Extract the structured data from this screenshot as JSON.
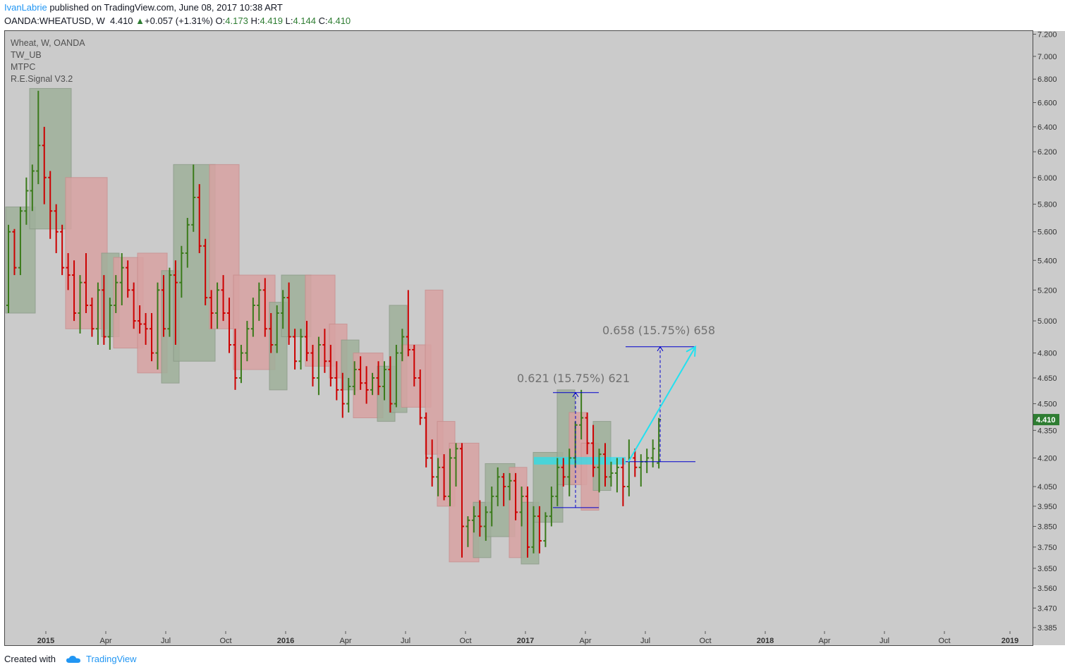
{
  "header": {
    "author": "IvanLabrie",
    "published": " published on TradingView.com, June 08, 2017 10:38 ART",
    "symbol": "OANDA:WHEATUSD, W",
    "last": "4.410",
    "change": "+0.057 (+1.31%)",
    "o_label": "O:",
    "o_val": "4.173",
    "h_label": "H:",
    "h_val": "4.419",
    "l_label": "L:",
    "l_val": "4.144",
    "c_label": "C:",
    "c_val": "4.410"
  },
  "legend": [
    "Wheat, W, OANDA",
    "TW_UB",
    "MTPC",
    "R.E.Signal V3.2"
  ],
  "footer": {
    "created": "Created with",
    "brand": "TradingView"
  },
  "colors": {
    "background": "#cbcbcb",
    "up": "#3a7a1a",
    "down": "#cc0000",
    "neutral": "#111111",
    "box_up": "#9fb09a",
    "box_down": "#d8a3a3",
    "measure": "#0000cc",
    "arrow": "#22e1f0",
    "price_tag": "#2e7d32"
  },
  "chart_data": {
    "type": "candlestick",
    "title": "Wheat, W, OANDA",
    "y_ticks": [
      "7.200",
      "7.000",
      "6.800",
      "6.600",
      "6.400",
      "6.200",
      "6.000",
      "5.800",
      "5.600",
      "5.400",
      "5.200",
      "5.000",
      "4.800",
      "4.650",
      "4.500",
      "4.350",
      "4.200",
      "4.050",
      "3.950",
      "3.850",
      "3.750",
      "3.650",
      "3.560",
      "3.470",
      "3.385"
    ],
    "x_ticks": [
      "2015",
      "Apr",
      "Jul",
      "Oct",
      "2016",
      "Apr",
      "Jul",
      "Oct",
      "2017",
      "Apr",
      "Jul",
      "Oct",
      "2018",
      "Apr",
      "Jul",
      "Oct",
      "2019"
    ],
    "x_bold": [
      "2015",
      "2016",
      "2017",
      "2018",
      "2019"
    ],
    "last_price": "4.410",
    "bars": [
      [
        5.1,
        5.65,
        5.05,
        5.6
      ],
      [
        5.6,
        5.62,
        5.3,
        5.35
      ],
      [
        5.35,
        5.78,
        5.3,
        5.75
      ],
      [
        5.75,
        6.0,
        5.65,
        5.9
      ],
      [
        5.9,
        6.1,
        5.75,
        6.05
      ],
      [
        6.05,
        6.7,
        5.95,
        6.25
      ],
      [
        6.25,
        6.4,
        5.8,
        6.0
      ],
      [
        6.0,
        6.05,
        5.55,
        5.75
      ],
      [
        5.75,
        5.8,
        5.45,
        5.6
      ],
      [
        5.6,
        5.65,
        5.3,
        5.35
      ],
      [
        5.35,
        5.45,
        5.2,
        5.3
      ],
      [
        5.3,
        5.4,
        5.0,
        5.05
      ],
      [
        5.05,
        5.3,
        4.92,
        5.25
      ],
      [
        5.25,
        5.45,
        5.05,
        5.1
      ],
      [
        5.1,
        5.15,
        4.9,
        4.95
      ],
      [
        4.95,
        5.25,
        4.85,
        5.2
      ],
      [
        5.2,
        5.3,
        4.85,
        4.9
      ],
      [
        4.9,
        5.15,
        4.82,
        5.1
      ],
      [
        5.1,
        5.3,
        5.05,
        5.25
      ],
      [
        5.25,
        5.45,
        5.1,
        5.35
      ],
      [
        5.35,
        5.4,
        5.15,
        5.2
      ],
      [
        5.2,
        5.25,
        4.95,
        5.0
      ],
      [
        5.0,
        5.1,
        4.92,
        4.98
      ],
      [
        4.98,
        5.05,
        4.85,
        4.95
      ],
      [
        4.95,
        5.05,
        4.75,
        4.8
      ],
      [
        4.8,
        5.25,
        4.7,
        5.2
      ],
      [
        5.2,
        5.3,
        4.9,
        4.95
      ],
      [
        4.95,
        5.35,
        4.9,
        5.3
      ],
      [
        5.3,
        5.4,
        4.85,
        5.25
      ],
      [
        5.25,
        5.5,
        5.15,
        5.45
      ],
      [
        5.45,
        5.7,
        5.35,
        5.65
      ],
      [
        5.65,
        6.1,
        5.6,
        5.85
      ],
      [
        5.85,
        5.95,
        5.45,
        5.5
      ],
      [
        5.5,
        5.55,
        5.1,
        5.15
      ],
      [
        5.15,
        5.2,
        4.95,
        5.05
      ],
      [
        5.05,
        5.25,
        4.95,
        5.2
      ],
      [
        5.2,
        5.3,
        5.0,
        5.05
      ],
      [
        5.05,
        5.15,
        4.8,
        4.85
      ],
      [
        4.85,
        4.95,
        4.58,
        4.65
      ],
      [
        4.65,
        4.85,
        4.62,
        4.8
      ],
      [
        4.8,
        5.0,
        4.75,
        4.95
      ],
      [
        4.95,
        5.15,
        4.9,
        5.1
      ],
      [
        5.1,
        5.25,
        5.0,
        5.2
      ],
      [
        5.2,
        5.28,
        4.9,
        4.95
      ],
      [
        4.95,
        5.05,
        4.8,
        4.85
      ],
      [
        4.85,
        5.1,
        4.8,
        5.05
      ],
      [
        5.05,
        5.2,
        4.95,
        5.15
      ],
      [
        5.15,
        5.25,
        4.85,
        4.9
      ],
      [
        4.9,
        4.95,
        4.7,
        4.75
      ],
      [
        4.75,
        4.95,
        4.7,
        4.9
      ],
      [
        4.9,
        5.0,
        4.75,
        4.8
      ],
      [
        4.8,
        4.85,
        4.6,
        4.65
      ],
      [
        4.65,
        4.9,
        4.55,
        4.85
      ],
      [
        4.85,
        4.95,
        4.68,
        4.75
      ],
      [
        4.75,
        4.85,
        4.6,
        4.65
      ],
      [
        4.65,
        4.75,
        4.52,
        4.58
      ],
      [
        4.58,
        4.68,
        4.42,
        4.5
      ],
      [
        4.5,
        4.65,
        4.45,
        4.6
      ],
      [
        4.6,
        4.75,
        4.55,
        4.7
      ],
      [
        4.7,
        4.78,
        4.58,
        4.62
      ],
      [
        4.62,
        4.72,
        4.5,
        4.58
      ],
      [
        4.58,
        4.68,
        4.55,
        4.65
      ],
      [
        4.65,
        4.75,
        4.55,
        4.6
      ],
      [
        4.6,
        4.75,
        4.52,
        4.7
      ],
      [
        4.7,
        4.78,
        4.45,
        4.5
      ],
      [
        4.5,
        4.85,
        4.48,
        4.8
      ],
      [
        4.8,
        4.95,
        4.75,
        4.9
      ],
      [
        4.9,
        5.2,
        4.78,
        4.82
      ],
      [
        4.82,
        4.85,
        4.6,
        4.65
      ],
      [
        4.65,
        4.7,
        4.38,
        4.42
      ],
      [
        4.42,
        4.45,
        4.15,
        4.2
      ],
      [
        4.2,
        4.3,
        4.05,
        4.1
      ],
      [
        4.1,
        4.2,
        4.0,
        4.15
      ],
      [
        4.15,
        4.22,
        3.98,
        4.0
      ],
      [
        4.0,
        4.25,
        3.95,
        4.2
      ],
      [
        4.2,
        4.28,
        4.05,
        4.25
      ],
      [
        4.25,
        4.28,
        3.7,
        3.85
      ],
      [
        3.85,
        3.9,
        3.75,
        3.88
      ],
      [
        3.88,
        3.95,
        3.82,
        3.9
      ],
      [
        3.9,
        3.98,
        3.8,
        3.85
      ],
      [
        3.85,
        3.95,
        3.78,
        3.92
      ],
      [
        3.92,
        4.05,
        3.85,
        4.0
      ],
      [
        4.0,
        4.15,
        3.95,
        4.1
      ],
      [
        4.1,
        4.12,
        3.95,
        4.05
      ],
      [
        4.05,
        4.12,
        3.98,
        4.08
      ],
      [
        4.08,
        4.12,
        3.88,
        3.92
      ],
      [
        3.92,
        4.05,
        3.85,
        4.0
      ],
      [
        4.0,
        4.05,
        3.7,
        3.75
      ],
      [
        3.75,
        3.95,
        3.72,
        3.9
      ],
      [
        3.9,
        3.95,
        3.72,
        3.78
      ],
      [
        3.78,
        3.92,
        3.75,
        3.9
      ],
      [
        3.9,
        4.05,
        3.85,
        4.0
      ],
      [
        4.0,
        4.2,
        3.95,
        4.15
      ],
      [
        4.15,
        4.2,
        4.05,
        4.1
      ],
      [
        4.1,
        4.25,
        4.0,
        4.2
      ],
      [
        4.2,
        4.4,
        4.15,
        4.38
      ],
      [
        4.38,
        4.58,
        4.3,
        4.42
      ],
      [
        4.42,
        4.45,
        4.22,
        4.28
      ],
      [
        4.28,
        4.38,
        4.1,
        4.15
      ],
      [
        4.15,
        4.25,
        4.02,
        4.22
      ],
      [
        4.22,
        4.28,
        4.05,
        4.1
      ],
      [
        4.1,
        4.18,
        4.05,
        4.12
      ],
      [
        4.12,
        4.2,
        4.02,
        4.15
      ],
      [
        4.15,
        4.2,
        3.95,
        4.05
      ],
      [
        4.05,
        4.3,
        4.0,
        4.2
      ],
      [
        4.2,
        4.25,
        4.1,
        4.15
      ],
      [
        4.15,
        4.22,
        4.05,
        4.18
      ],
      [
        4.18,
        4.25,
        4.12,
        4.2
      ],
      [
        4.2,
        4.3,
        4.15,
        4.25
      ],
      [
        4.173,
        4.419,
        4.144,
        4.41
      ]
    ],
    "blocks": [
      {
        "dir": "up",
        "i0": 0,
        "i1": 1,
        "lo": 5.05,
        "hi": 5.78
      },
      {
        "dir": "up",
        "i0": 2,
        "i1": 4,
        "lo": 5.62,
        "hi": 6.72
      },
      {
        "dir": "down",
        "i0": 5,
        "i1": 7,
        "lo": 4.95,
        "hi": 6.0
      },
      {
        "dir": "up",
        "i0": 8,
        "i1": 8,
        "lo": 4.9,
        "hi": 5.45
      },
      {
        "dir": "down",
        "i0": 9,
        "i1": 10,
        "lo": 4.83,
        "hi": 5.42
      },
      {
        "dir": "down",
        "i0": 11,
        "i1": 12,
        "lo": 4.68,
        "hi": 5.45
      },
      {
        "dir": "up",
        "i0": 13,
        "i1": 13,
        "lo": 4.62,
        "hi": 5.33
      },
      {
        "dir": "up",
        "i0": 14,
        "i1": 16,
        "lo": 4.75,
        "hi": 6.1
      },
      {
        "dir": "down",
        "i0": 17,
        "i1": 18,
        "lo": 4.95,
        "hi": 6.1
      },
      {
        "dir": "down",
        "i0": 19,
        "i1": 21,
        "lo": 4.7,
        "hi": 5.3
      },
      {
        "dir": "up",
        "i0": 22,
        "i1": 22,
        "lo": 4.58,
        "hi": 5.12
      },
      {
        "dir": "up",
        "i0": 23,
        "i1": 24,
        "lo": 4.9,
        "hi": 5.3
      },
      {
        "dir": "down",
        "i0": 25,
        "i1": 26,
        "lo": 4.72,
        "hi": 5.3
      },
      {
        "dir": "down",
        "i0": 27,
        "i1": 27,
        "lo": 4.65,
        "hi": 4.98
      },
      {
        "dir": "up",
        "i0": 28,
        "i1": 28,
        "lo": 4.58,
        "hi": 4.88
      },
      {
        "dir": "down",
        "i0": 29,
        "i1": 30,
        "lo": 4.42,
        "hi": 4.8
      },
      {
        "dir": "up",
        "i0": 31,
        "i1": 31,
        "lo": 4.4,
        "hi": 4.72
      },
      {
        "dir": "up",
        "i0": 32,
        "i1": 32,
        "lo": 4.45,
        "hi": 5.1
      },
      {
        "dir": "down",
        "i0": 33,
        "i1": 34,
        "lo": 4.48,
        "hi": 4.85
      },
      {
        "dir": "down",
        "i0": 35,
        "i1": 35,
        "lo": 4.22,
        "hi": 5.2
      },
      {
        "dir": "down",
        "i0": 36,
        "i1": 36,
        "lo": 3.95,
        "hi": 4.4
      },
      {
        "dir": "down",
        "i0": 37,
        "i1": 38,
        "lo": 3.68,
        "hi": 4.28
      },
      {
        "dir": "up",
        "i0": 39,
        "i1": 39,
        "lo": 3.7,
        "hi": 3.97
      },
      {
        "dir": "up",
        "i0": 40,
        "i1": 41,
        "lo": 3.8,
        "hi": 4.17
      },
      {
        "dir": "down",
        "i0": 42,
        "i1": 42,
        "lo": 3.7,
        "hi": 4.15
      },
      {
        "dir": "up",
        "i0": 43,
        "i1": 43,
        "lo": 3.67,
        "hi": 3.97
      },
      {
        "dir": "up",
        "i0": 44,
        "i1": 45,
        "lo": 3.87,
        "hi": 4.23
      },
      {
        "dir": "up",
        "i0": 46,
        "i1": 46,
        "lo": 4.06,
        "hi": 4.58
      },
      {
        "dir": "down",
        "i0": 47,
        "i1": 47,
        "lo": 4.06,
        "hi": 4.45
      },
      {
        "dir": "down",
        "i0": 48,
        "i1": 48,
        "lo": 3.93,
        "hi": 4.28
      },
      {
        "dir": "up",
        "i0": 49,
        "i1": 49,
        "lo": 4.03,
        "hi": 4.4
      }
    ],
    "measure_1": {
      "label": "0.621 (15.75%) 621",
      "base": 3.943,
      "top": 4.564
    },
    "measure_2": {
      "label": "0.658 (15.75%) 658",
      "base": 4.18,
      "top": 4.838
    },
    "support_zone": {
      "lo": 4.165,
      "hi": 4.205
    }
  }
}
